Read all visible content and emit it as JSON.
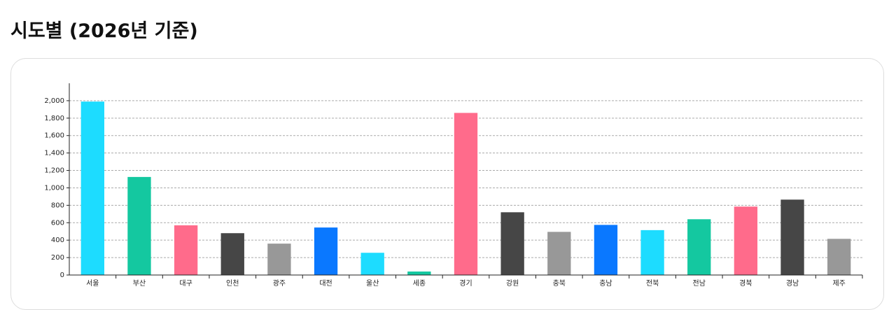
{
  "heading": "시도별 (2026년 기준)",
  "chart_data": {
    "type": "bar",
    "categories": [
      "서울",
      "부산",
      "대구",
      "인천",
      "광주",
      "대전",
      "울산",
      "세종",
      "경기",
      "강원",
      "충북",
      "충남",
      "전북",
      "전남",
      "경북",
      "경남",
      "제주"
    ],
    "values": [
      1990,
      1125,
      570,
      480,
      360,
      545,
      255,
      40,
      1860,
      720,
      495,
      575,
      515,
      640,
      785,
      865,
      415
    ],
    "colors": [
      "#1ddcff",
      "#14c8a0",
      "#ff6b8b",
      "#464646",
      "#989898",
      "#0a78ff",
      "#1ddcff",
      "#14c8a0",
      "#ff6b8b",
      "#464646",
      "#989898",
      "#0a78ff",
      "#1ddcff",
      "#14c8a0",
      "#ff6b8b",
      "#464646",
      "#989898"
    ],
    "ylim": [
      0,
      2200
    ],
    "yticks": [
      0,
      200,
      400,
      600,
      800,
      {
        "value": 1000,
        "label": "1,000"
      },
      {
        "value": 1200,
        "label": "1,200"
      },
      {
        "value": 1400,
        "label": "1,400"
      },
      {
        "value": 1600,
        "label": "1,600"
      },
      {
        "value": 1800,
        "label": "1,800"
      },
      {
        "value": 2000,
        "label": "2,000"
      }
    ],
    "grid": true
  }
}
